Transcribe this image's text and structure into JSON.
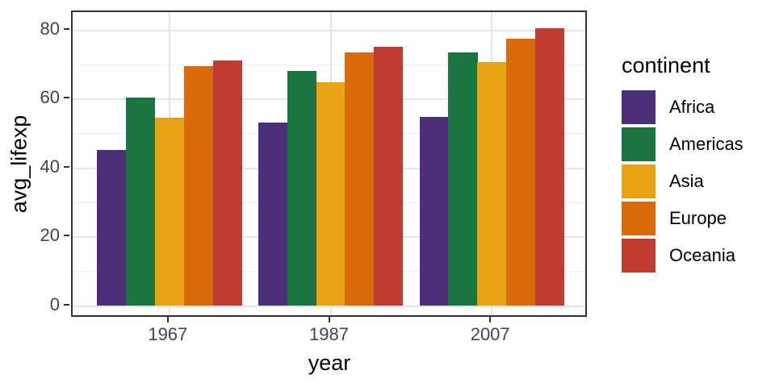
{
  "figure": {
    "kind": "grouped-bar-chart"
  },
  "axes": {
    "x_title": "year",
    "y_title": "avg_lifexp",
    "x_tick_labels": [
      "1967",
      "1987",
      "2007"
    ],
    "y_tick_labels": [
      "0",
      "20",
      "40",
      "60",
      "80"
    ]
  },
  "legend": {
    "title": "continent",
    "items": [
      "Africa",
      "Americas",
      "Asia",
      "Europe",
      "Oceania"
    ]
  },
  "colors": {
    "africa": "#4B3077",
    "americas": "#1A7540",
    "asia": "#E7A314",
    "europe": "#D86A09",
    "oceania": "#C03C33",
    "panel_border": "#333333",
    "grid_major": "#e4e4e4",
    "grid_minor": "#efefef",
    "tick_text": "#454545"
  },
  "chart_data": {
    "type": "bar",
    "layout": "grouped",
    "title": "",
    "xlabel": "year",
    "ylabel": "avg_lifexp",
    "categories": [
      "1967",
      "1987",
      "2007"
    ],
    "series": [
      {
        "name": "Africa",
        "color": "#4B3077",
        "values": [
          45.3,
          53.3,
          54.8
        ]
      },
      {
        "name": "Americas",
        "color": "#1A7540",
        "values": [
          60.4,
          68.1,
          73.6
        ]
      },
      {
        "name": "Asia",
        "color": "#E7A314",
        "values": [
          54.7,
          64.9,
          70.7
        ]
      },
      {
        "name": "Europe",
        "color": "#D86A09",
        "values": [
          69.7,
          73.6,
          77.6
        ]
      },
      {
        "name": "Oceania",
        "color": "#C03C33",
        "values": [
          71.3,
          75.3,
          80.7
        ]
      }
    ],
    "ylim": [
      0,
      85.2
    ],
    "y_major_ticks": [
      0,
      20,
      40,
      60,
      80
    ],
    "y_minor_ticks": [
      10,
      30,
      50,
      70
    ],
    "grid": "on",
    "legend_title": "continent",
    "legend_position": "right"
  }
}
